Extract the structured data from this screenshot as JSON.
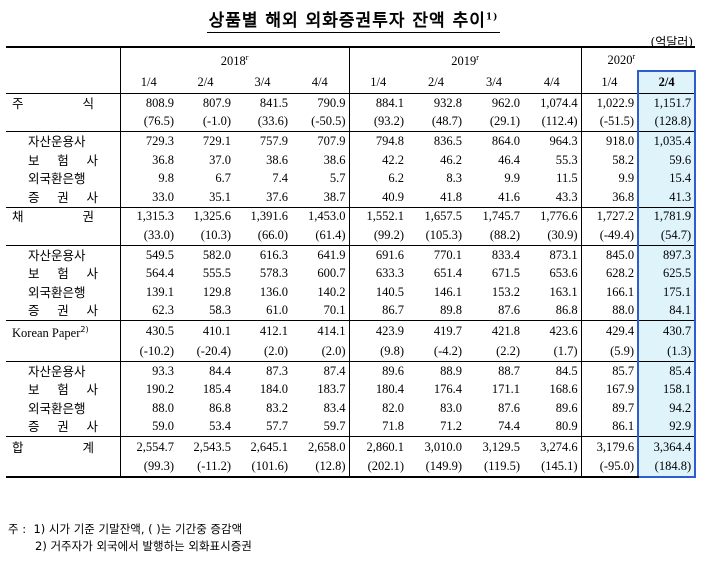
{
  "title": "상품별 해외 외화증권투자 잔액 추이",
  "title_note_mark": "1)",
  "unit": "(억달러)",
  "years": [
    {
      "label": "2018",
      "mark": "r"
    },
    {
      "label": "2019",
      "mark": "r"
    },
    {
      "label": "2020",
      "mark": "r"
    }
  ],
  "quarters": [
    "1/4",
    "2/4",
    "3/4",
    "4/4",
    "1/4",
    "2/4",
    "3/4",
    "4/4",
    "1/4",
    "2/4"
  ],
  "groups": [
    {
      "label": "주식",
      "label_chars": [
        "주",
        "식"
      ],
      "values": [
        "808.9",
        "807.9",
        "841.5",
        "790.9",
        "884.1",
        "932.8",
        "962.0",
        "1,074.4",
        "1,022.9",
        "1,151.7"
      ],
      "changes": [
        "(76.5)",
        "(-1.0)",
        "(33.6)",
        "(-50.5)",
        "(93.2)",
        "(48.7)",
        "(29.1)",
        "(112.4)",
        "(-51.5)",
        "(128.8)"
      ],
      "subs": [
        {
          "label": "자산운용사",
          "chars": [
            "자산운용사"
          ],
          "values": [
            "729.3",
            "729.1",
            "757.9",
            "707.9",
            "794.8",
            "836.5",
            "864.0",
            "964.3",
            "918.0",
            "1,035.4"
          ]
        },
        {
          "label": "보험사",
          "chars": [
            "보",
            "험",
            "사"
          ],
          "values": [
            "36.8",
            "37.0",
            "38.6",
            "38.6",
            "42.2",
            "46.2",
            "46.4",
            "55.3",
            "58.2",
            "59.6"
          ]
        },
        {
          "label": "외국환은행",
          "chars": [
            "외국환은행"
          ],
          "values": [
            "9.8",
            "6.7",
            "7.4",
            "5.7",
            "6.2",
            "8.3",
            "9.9",
            "11.5",
            "9.9",
            "15.4"
          ]
        },
        {
          "label": "증권사",
          "chars": [
            "증",
            "권",
            "사"
          ],
          "values": [
            "33.0",
            "35.1",
            "37.6",
            "38.7",
            "40.9",
            "41.8",
            "41.6",
            "43.3",
            "36.8",
            "41.3"
          ]
        }
      ]
    },
    {
      "label": "채권",
      "label_chars": [
        "채",
        "권"
      ],
      "values": [
        "1,315.3",
        "1,325.6",
        "1,391.6",
        "1,453.0",
        "1,552.1",
        "1,657.5",
        "1,745.7",
        "1,776.6",
        "1,727.2",
        "1,781.9"
      ],
      "changes": [
        "(33.0)",
        "(10.3)",
        "(66.0)",
        "(61.4)",
        "(99.2)",
        "(105.3)",
        "(88.2)",
        "(30.9)",
        "(-49.4)",
        "(54.7)"
      ],
      "subs": [
        {
          "label": "자산운용사",
          "chars": [
            "자산운용사"
          ],
          "values": [
            "549.5",
            "582.0",
            "616.3",
            "641.9",
            "691.6",
            "770.1",
            "833.4",
            "873.1",
            "845.0",
            "897.3"
          ]
        },
        {
          "label": "보험사",
          "chars": [
            "보",
            "험",
            "사"
          ],
          "values": [
            "564.4",
            "555.5",
            "578.3",
            "600.7",
            "633.3",
            "651.4",
            "671.5",
            "653.6",
            "628.2",
            "625.5"
          ]
        },
        {
          "label": "외국환은행",
          "chars": [
            "외국환은행"
          ],
          "values": [
            "139.1",
            "129.8",
            "136.0",
            "140.2",
            "140.5",
            "146.1",
            "153.2",
            "163.1",
            "166.1",
            "175.1"
          ]
        },
        {
          "label": "증권사",
          "chars": [
            "증",
            "권",
            "사"
          ],
          "values": [
            "62.3",
            "58.3",
            "61.0",
            "70.1",
            "86.7",
            "89.8",
            "87.6",
            "86.8",
            "88.0",
            "84.1"
          ]
        }
      ]
    },
    {
      "label": "Korean Paper",
      "label_mark": "2)",
      "values": [
        "430.5",
        "410.1",
        "412.1",
        "414.1",
        "423.9",
        "419.7",
        "421.8",
        "423.6",
        "429.4",
        "430.7"
      ],
      "changes": [
        "(-10.2)",
        "(-20.4)",
        "(2.0)",
        "(2.0)",
        "(9.8)",
        "(-4.2)",
        "(2.2)",
        "(1.7)",
        "(5.9)",
        "(1.3)"
      ],
      "subs": [
        {
          "label": "자산운용사",
          "chars": [
            "자산운용사"
          ],
          "values": [
            "93.3",
            "84.4",
            "87.3",
            "87.4",
            "89.6",
            "88.9",
            "88.7",
            "84.5",
            "85.7",
            "85.4"
          ]
        },
        {
          "label": "보험사",
          "chars": [
            "보",
            "험",
            "사"
          ],
          "values": [
            "190.2",
            "185.4",
            "184.0",
            "183.7",
            "180.4",
            "176.4",
            "171.1",
            "168.6",
            "167.9",
            "158.1"
          ]
        },
        {
          "label": "외국환은행",
          "chars": [
            "외국환은행"
          ],
          "values": [
            "88.0",
            "86.8",
            "83.2",
            "83.4",
            "82.0",
            "83.0",
            "87.6",
            "89.6",
            "89.7",
            "94.2"
          ]
        },
        {
          "label": "증권사",
          "chars": [
            "증",
            "권",
            "사"
          ],
          "values": [
            "59.0",
            "53.4",
            "57.7",
            "59.7",
            "71.8",
            "71.2",
            "74.4",
            "80.9",
            "86.1",
            "92.9"
          ]
        }
      ]
    }
  ],
  "total": {
    "label": "합계",
    "label_chars": [
      "합",
      "계"
    ],
    "values": [
      "2,554.7",
      "2,543.5",
      "2,645.1",
      "2,658.0",
      "2,860.1",
      "3,010.0",
      "3,129.5",
      "3,274.6",
      "3,179.6",
      "3,364.4"
    ],
    "changes": [
      "(99.3)",
      "(-11.2)",
      "(101.6)",
      "(12.8)",
      "(202.1)",
      "(149.9)",
      "(119.5)",
      "(145.1)",
      "(-95.0)",
      "(184.8)"
    ]
  },
  "notes": {
    "prefix": "주 :",
    "items": [
      {
        "mark": "1)",
        "text": "시가 기준 기말잔액, (    )는 기간중 증감액"
      },
      {
        "mark": "2)",
        "text": "거주자가 외국에서 발행하는 외화표시증권"
      }
    ]
  }
}
